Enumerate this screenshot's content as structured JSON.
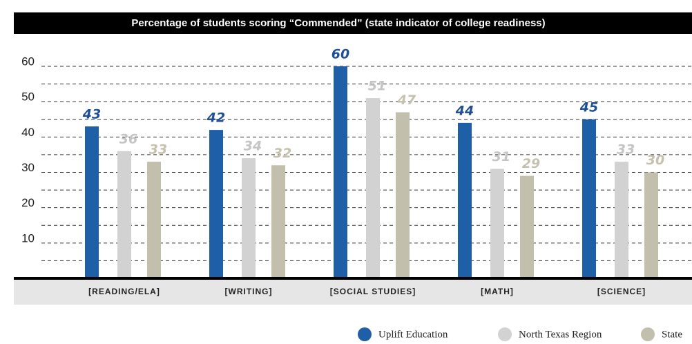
{
  "chart_data": {
    "type": "bar",
    "title": "Percentage of students scoring “Commended” (state indicator of college readiness)",
    "categories": [
      "[READING/ELA]",
      "[WRITING]",
      "[SOCIAL STUDIES]",
      "[MATH]",
      "[SCIENCE]"
    ],
    "series": [
      {
        "name": "Uplift Education",
        "color": "#1f5fa8",
        "values": [
          43,
          42,
          60,
          44,
          45
        ]
      },
      {
        "name": "North Texas Region",
        "color": "#d2d2d2",
        "values": [
          36,
          34,
          51,
          31,
          33
        ]
      },
      {
        "name": "State",
        "color": "#c2bfac",
        "values": [
          33,
          32,
          47,
          29,
          30
        ]
      }
    ],
    "ylim": [
      0,
      60
    ],
    "yticks": [
      10,
      20,
      30,
      40,
      50,
      60
    ],
    "y_minor_ticks": [
      5,
      15,
      25,
      35,
      45,
      55
    ],
    "grid": true,
    "legend": "bottom"
  }
}
